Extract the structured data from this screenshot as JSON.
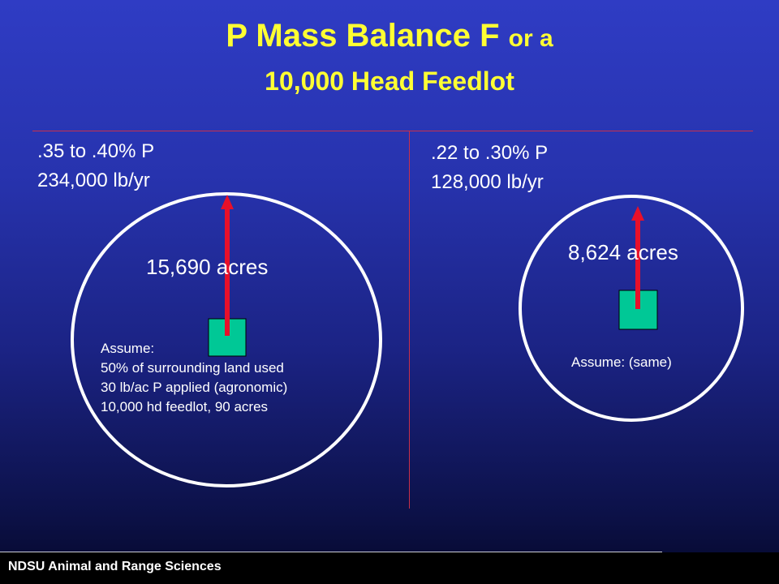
{
  "title": {
    "line1_main": "P Mass Balance F",
    "line1_small": "or a",
    "line2": "10,000 Head Feedlot"
  },
  "left": {
    "concentration": ".35 to .40% P",
    "amount": "234,000 lb/yr",
    "acres": "15,690 acres",
    "assume": [
      "Assume:",
      "50% of surrounding land used",
      "30 lb/ac P applied (agronomic)",
      "10,000 hd feedlot, 90 acres"
    ]
  },
  "right": {
    "concentration": ".22 to .30% P",
    "amount": "128,000 lb/yr",
    "acres": "8,624 acres",
    "assume": "Assume: (same)"
  },
  "footer": "NDSU Animal and Range Sciences",
  "colors": {
    "title": "#ffff33",
    "divider": "#c8304a",
    "arrow": "#e8102a",
    "feedlot": "#00c896",
    "circle": "#ffffff"
  },
  "icons": {
    "arrow": "arrow-up-icon",
    "feedlot": "feedlot-square-icon"
  }
}
